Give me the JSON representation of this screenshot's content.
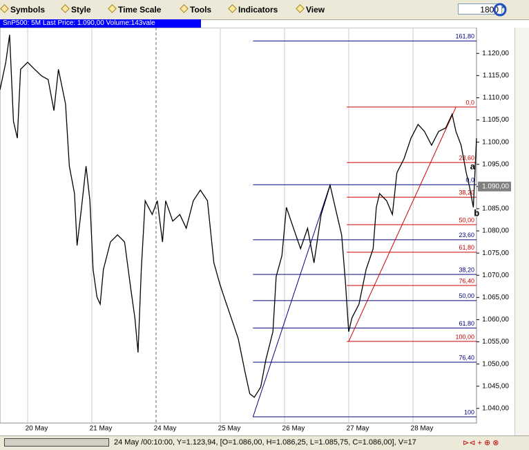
{
  "toolbar": {
    "items": [
      "Symbols",
      "Style",
      "Time Scale",
      "Tools",
      "Indicators",
      "View"
    ],
    "period": "1800"
  },
  "header": "SnP500: 5M Last Price: 1.090,00 Volume:143vale",
  "status": "24 May /00:10:00, Y=1.123,94, [O=1.086,00, H=1.086,25, L=1.085,75, C=1.086,00], V=17",
  "chart_data": {
    "type": "line",
    "color": "#000000",
    "vgrid": true,
    "xlim": [
      -0.43,
      6.99
    ],
    "xticks": [
      {
        "value": 0,
        "label": "20 May"
      },
      {
        "value": 1,
        "label": "21 May"
      },
      {
        "value": 2,
        "label": "24 May"
      },
      {
        "value": 3,
        "label": "25 May"
      },
      {
        "value": 4,
        "label": "26 May"
      },
      {
        "value": 5,
        "label": "27 May"
      },
      {
        "value": 6,
        "label": "28 May"
      }
    ],
    "ylim": [
      1.0367,
      1.1258
    ],
    "yticks": [
      {
        "value": 1.04,
        "label": "1.040,00"
      },
      {
        "value": 1.045,
        "label": "1.045,00"
      },
      {
        "value": 1.05,
        "label": "1.050,00"
      },
      {
        "value": 1.055,
        "label": "1.055,00"
      },
      {
        "value": 1.06,
        "label": "1.060,00"
      },
      {
        "value": 1.065,
        "label": "1.065,00"
      },
      {
        "value": 1.07,
        "label": "1.070,00"
      },
      {
        "value": 1.075,
        "label": "1.075,00"
      },
      {
        "value": 1.08,
        "label": "1.080,00"
      },
      {
        "value": 1.085,
        "label": "1.085,00"
      },
      {
        "value": 1.09,
        "label": "1.090,00"
      },
      {
        "value": 1.095,
        "label": "1.095,00"
      },
      {
        "value": 1.1,
        "label": "1.100,00"
      },
      {
        "value": 1.105,
        "label": "1.105,00"
      },
      {
        "value": 1.11,
        "label": "1.110,00"
      },
      {
        "value": 1.115,
        "label": "1.115,00"
      },
      {
        "value": 1.12,
        "label": "1.120,00"
      }
    ],
    "x": [
      -0.43,
      -0.34,
      -0.28,
      -0.22,
      -0.16,
      -0.11,
      0.0,
      0.11,
      0.22,
      0.32,
      0.41,
      0.48,
      0.59,
      0.65,
      0.73,
      0.77,
      0.84,
      0.91,
      0.97,
      1.02,
      1.08,
      1.13,
      1.18,
      1.29,
      1.4,
      1.51,
      1.61,
      1.67,
      1.72,
      1.77,
      1.83,
      1.94,
      2.02,
      2.1,
      2.15,
      2.26,
      2.37,
      2.47,
      2.58,
      2.69,
      2.8,
      2.9,
      2.99,
      3.06,
      3.17,
      3.28,
      3.39,
      3.46,
      3.53,
      3.63,
      3.71,
      3.82,
      3.87,
      3.96,
      4.03,
      4.14,
      4.25,
      4.36,
      4.46,
      4.57,
      4.71,
      4.79,
      4.89,
      4.95,
      5.0,
      5.05,
      5.16,
      5.27,
      5.38,
      5.43,
      5.48,
      5.59,
      5.68,
      5.75,
      5.86,
      5.97,
      6.08,
      6.18,
      6.29,
      6.4,
      6.51,
      6.61,
      6.67,
      6.75,
      6.83,
      6.88,
      6.94,
      6.99
    ],
    "values": [
      1.1118,
      1.118,
      1.1242,
      1.1047,
      1.1009,
      1.1164,
      1.118,
      1.1164,
      1.1149,
      1.1141,
      1.1071,
      1.1164,
      1.1086,
      1.0946,
      1.0884,
      1.0767,
      1.0853,
      1.0946,
      1.0868,
      1.0713,
      1.0651,
      1.0635,
      1.0713,
      1.0775,
      1.0791,
      1.0775,
      1.0666,
      1.0604,
      1.0526,
      1.0713,
      1.0868,
      1.0837,
      1.0868,
      1.0775,
      1.0868,
      1.0822,
      1.0837,
      1.0806,
      1.0868,
      1.0892,
      1.0868,
      1.0728,
      1.0682,
      1.0651,
      1.0604,
      1.0557,
      1.0479,
      1.0433,
      1.0425,
      1.0448,
      1.051,
      1.0573,
      1.0697,
      1.0744,
      1.0853,
      1.0806,
      1.076,
      1.0806,
      1.0728,
      1.0837,
      1.0903,
      1.0853,
      1.0791,
      1.0682,
      1.0573,
      1.0604,
      1.0635,
      1.0713,
      1.076,
      1.0853,
      1.0884,
      1.0868,
      1.0837,
      1.0931,
      1.0962,
      1.1009,
      1.104,
      1.1024,
      1.0993,
      1.1024,
      1.1032,
      1.1063,
      1.1024,
      1.0993,
      1.0931,
      1.09,
      1.0853,
      1.1009
    ],
    "last_price": {
      "value": 1.09,
      "label": "1.090,00"
    },
    "fib_sets": [
      {
        "color": "#000080",
        "x_start": 3.51,
        "levels": [
          {
            "label": "161,80",
            "value": 1.1228
          },
          {
            "label": "0,0",
            "value": 1.0904
          },
          {
            "label": "23,60",
            "value": 1.078
          },
          {
            "label": "38,20",
            "value": 1.0702
          },
          {
            "label": "50,00",
            "value": 1.0643
          },
          {
            "label": "61,80",
            "value": 1.0581
          },
          {
            "label": "76,40",
            "value": 1.0504
          },
          {
            "label": "100",
            "value": 1.0381
          }
        ]
      },
      {
        "color": "#cc0000",
        "x_start": 4.97,
        "levels": [
          {
            "label": "0,0",
            "value": 1.1079
          },
          {
            "label": "23,60",
            "value": 1.0954
          },
          {
            "label": "38,20",
            "value": 1.0876
          },
          {
            "label": "50,00",
            "value": 1.0814
          },
          {
            "label": "61,80",
            "value": 1.0752
          },
          {
            "label": "76,40",
            "value": 1.0677
          },
          {
            "label": "100,00",
            "value": 1.0551
          }
        ]
      }
    ],
    "trend_lines": [
      {
        "color": "#000080",
        "x": [
          3.51,
          4.71
        ],
        "y": [
          1.0381,
          1.0904
        ]
      },
      {
        "color": "#cc0000",
        "x": [
          5.0,
          6.67
        ],
        "y": [
          1.0551,
          1.1079
        ]
      }
    ],
    "annotations": [
      {
        "text": "a",
        "x": 6.89,
        "y": 1.0944
      },
      {
        "text": "b",
        "x": 6.95,
        "y": 1.0839
      }
    ]
  }
}
